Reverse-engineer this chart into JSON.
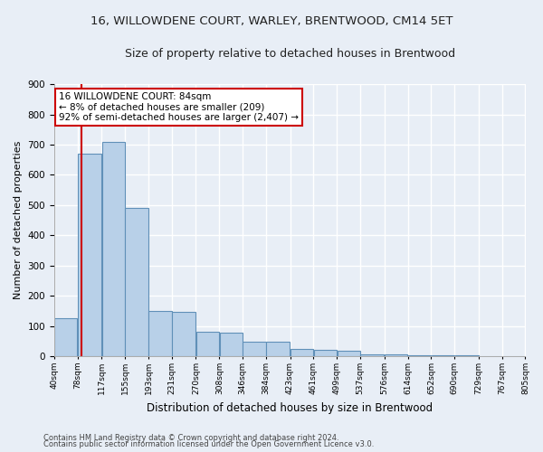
{
  "title": "16, WILLOWDENE COURT, WARLEY, BRENTWOOD, CM14 5ET",
  "subtitle": "Size of property relative to detached houses in Brentwood",
  "xlabel": "Distribution of detached houses by size in Brentwood",
  "ylabel": "Number of detached properties",
  "bins": [
    40,
    78,
    117,
    155,
    193,
    231,
    270,
    308,
    346,
    384,
    423,
    461,
    499,
    537,
    576,
    614,
    652,
    690,
    729,
    767,
    805
  ],
  "bar_heights": [
    125,
    670,
    710,
    490,
    150,
    148,
    80,
    78,
    50,
    48,
    25,
    22,
    20,
    8,
    6,
    5,
    4,
    3,
    2,
    1
  ],
  "bar_color": "#b8d0e8",
  "bar_edge_color": "#6090b8",
  "property_size": 84,
  "annotation_line1": "16 WILLOWDENE COURT: 84sqm",
  "annotation_line2": "← 8% of detached houses are smaller (209)",
  "annotation_line3": "92% of semi-detached houses are larger (2,407) →",
  "vline_color": "#cc0000",
  "annotation_box_facecolor": "#ffffff",
  "annotation_box_edgecolor": "#cc0000",
  "footer1": "Contains HM Land Registry data © Crown copyright and database right 2024.",
  "footer2": "Contains public sector information licensed under the Open Government Licence v3.0.",
  "ylim": [
    0,
    900
  ],
  "yticks": [
    0,
    100,
    200,
    300,
    400,
    500,
    600,
    700,
    800,
    900
  ],
  "bg_color": "#e8eef6",
  "plot_bg_color": "#e8eef6",
  "grid_color": "#ffffff",
  "title_fontsize": 9.5,
  "subtitle_fontsize": 9,
  "ylabel_fontsize": 8,
  "xlabel_fontsize": 8.5
}
